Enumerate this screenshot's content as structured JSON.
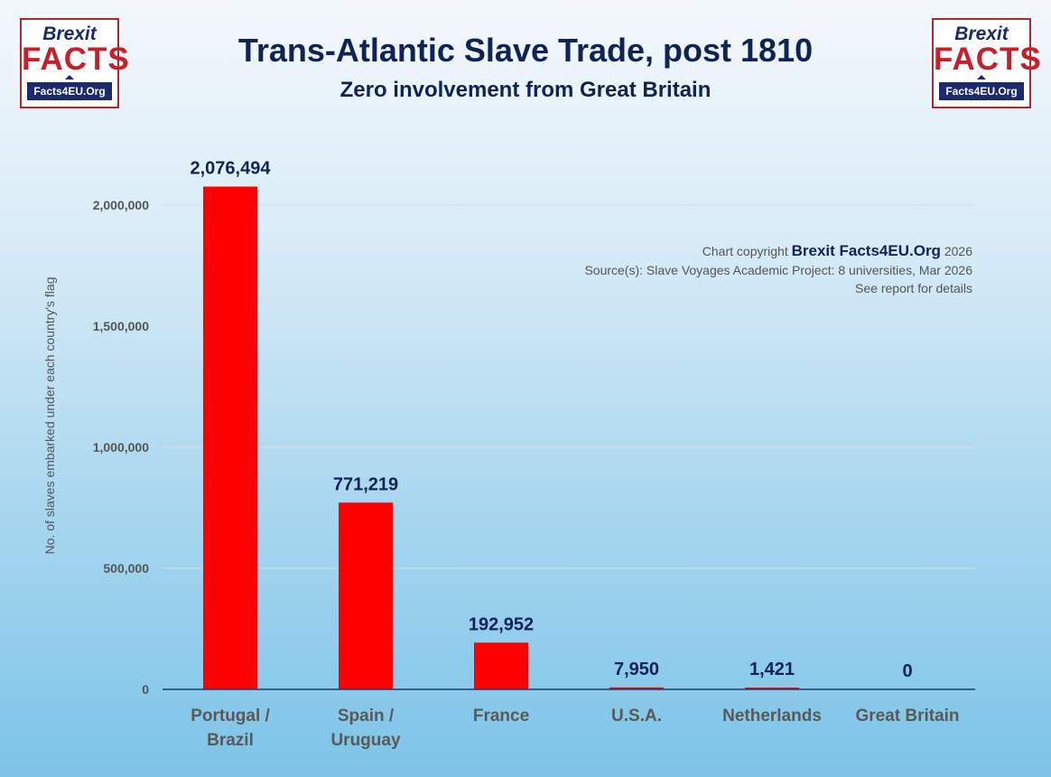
{
  "logos": {
    "line1": "Brexit",
    "line2": "FACTS",
    "line3": "Facts4EU.Org"
  },
  "copyright": {
    "line1_prefix": "Chart copyright",
    "line1_brand": "Brexit Facts4EU.Org",
    "line1_year": "2026",
    "line2": "Source(s): Slave Voyages Academic Project: 8 universities, Mar 2026",
    "line3": "See report for details"
  },
  "colors": {
    "bar": "#ff0000",
    "title": "#0f2357",
    "axis": "#1f3a6a",
    "grid": "#d8dde4"
  },
  "chart_data": {
    "type": "bar",
    "title": "Trans-Atlantic Slave Trade, post 1810",
    "subtitle": "Zero involvement from Great Britain",
    "categories": [
      [
        "Portugal /",
        "Brazil"
      ],
      [
        "Spain /",
        "Uruguay"
      ],
      [
        "France"
      ],
      [
        "U.S.A."
      ],
      [
        "Netherlands"
      ],
      [
        "Great Britain"
      ]
    ],
    "values": [
      2076494,
      771219,
      192952,
      7950,
      1421,
      0
    ],
    "value_labels": [
      "2,076,494",
      "771,219",
      "192,952",
      "7,950",
      "1,421",
      "0"
    ],
    "ylabel": "No. of slaves embarked under each country's flag",
    "xlabel": "",
    "ylim": [
      0,
      2000000
    ],
    "yticks": [
      0,
      500000,
      1000000,
      1500000,
      2000000
    ],
    "ytick_labels": [
      "0",
      "500,000",
      "1,000,000",
      "1,500,000",
      "2,000,000"
    ],
    "grid": true,
    "legend": "none"
  }
}
